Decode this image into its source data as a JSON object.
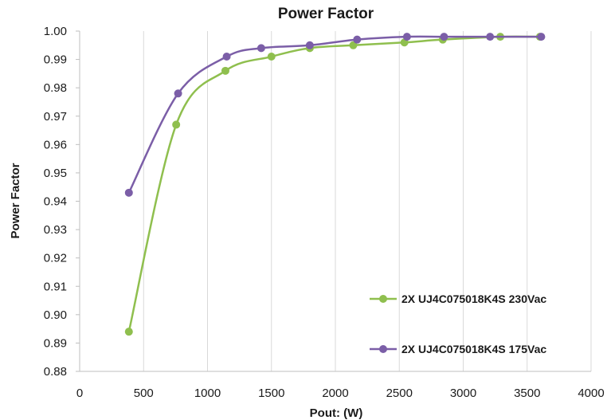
{
  "chart_data": {
    "type": "line",
    "title": "Power Factor",
    "xlabel": "Pout: (W)",
    "ylabel": "Power Factor",
    "xlim": [
      0,
      4000
    ],
    "ylim": [
      0.88,
      1.0
    ],
    "x_ticks": [
      "0",
      "500",
      "1000",
      "1500",
      "2000",
      "2500",
      "3000",
      "3500",
      "4000"
    ],
    "y_ticks": [
      "0.88",
      "0.89",
      "0.90",
      "0.91",
      "0.92",
      "0.93",
      "0.94",
      "0.95",
      "0.96",
      "0.97",
      "0.98",
      "0.99",
      "1.00"
    ],
    "grid": "vertical",
    "legend_position": "bottom-right",
    "series": [
      {
        "name": "2X UJ4C075018K4S 230Vac",
        "color": "#8fbf4e",
        "points": [
          [
            385,
            0.894
          ],
          [
            755,
            0.967
          ],
          [
            1140,
            0.986
          ],
          [
            1500,
            0.991
          ],
          [
            1800,
            0.994
          ],
          [
            2140,
            0.995
          ],
          [
            2540,
            0.996
          ],
          [
            2840,
            0.997
          ],
          [
            3290,
            0.998
          ],
          [
            3600,
            0.998
          ]
        ]
      },
      {
        "name": "2X UJ4C075018K4S 175Vac",
        "color": "#7b5ea7",
        "points": [
          [
            385,
            0.943
          ],
          [
            770,
            0.978
          ],
          [
            1150,
            0.991
          ],
          [
            1420,
            0.994
          ],
          [
            1800,
            0.995
          ],
          [
            2170,
            0.997
          ],
          [
            2560,
            0.998
          ],
          [
            2850,
            0.998
          ],
          [
            3210,
            0.998
          ],
          [
            3610,
            0.998
          ]
        ]
      }
    ]
  }
}
